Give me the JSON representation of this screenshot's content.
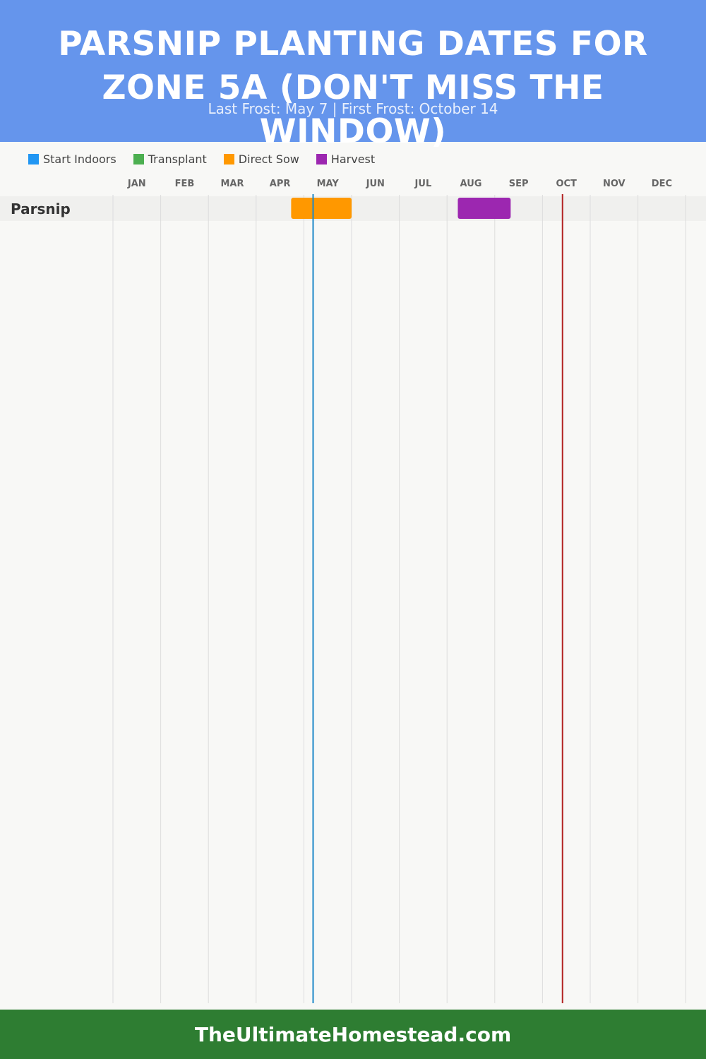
{
  "header": {
    "title": "PARSNIP PLANTING DATES FOR ZONE 5A (DON'T MISS THE WINDOW)",
    "subtitle": "Last Frost: May 7 | First Frost: October 14"
  },
  "legend": [
    {
      "label": "Start Indoors",
      "color": "#2196f3"
    },
    {
      "label": "Transplant",
      "color": "#4caf50"
    },
    {
      "label": "Direct Sow",
      "color": "#ff9800"
    },
    {
      "label": "Harvest",
      "color": "#9c27b0"
    }
  ],
  "chart_data": {
    "type": "gantt",
    "months": [
      "JAN",
      "FEB",
      "MAR",
      "APR",
      "MAY",
      "JUN",
      "JUL",
      "AUG",
      "SEP",
      "OCT",
      "NOV",
      "DEC"
    ],
    "rows": [
      {
        "crop": "Parsnip",
        "bars": [
          {
            "phase": "Direct Sow",
            "start": "Apr 23",
            "end": "Jun 1",
            "color": "#ff9800"
          },
          {
            "phase": "Harvest",
            "start": "Aug 8",
            "end": "Sep 11",
            "color": "#9c27b0"
          }
        ]
      }
    ],
    "markers": [
      {
        "label": "Last Frost",
        "date": "May 7",
        "color": "#1e88c8"
      },
      {
        "label": "First Frost",
        "date": "Oct 14",
        "color": "#b22222"
      }
    ],
    "grid": true
  },
  "footer": {
    "site": "TheUltimateHomestead.com"
  }
}
